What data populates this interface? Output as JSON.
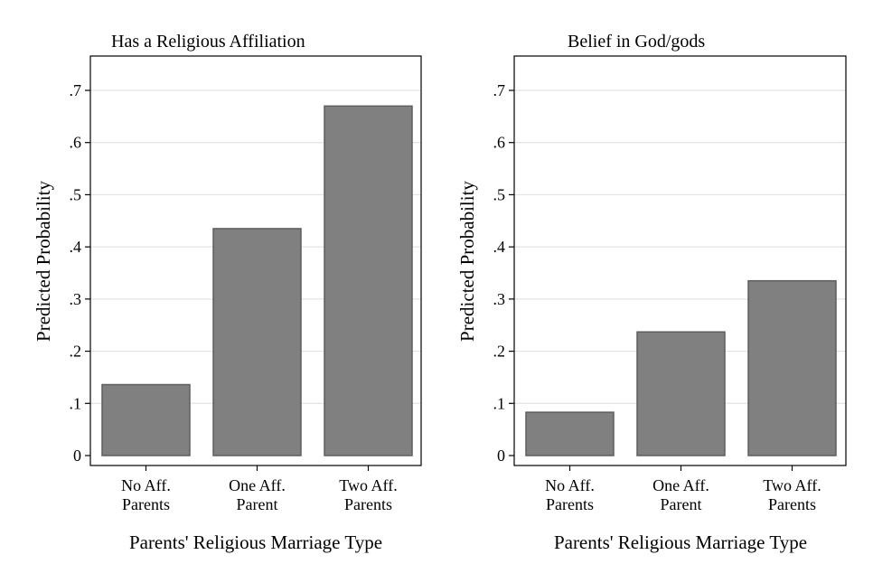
{
  "chart_data": [
    {
      "type": "bar",
      "title": "Has a Religious Affiliation",
      "xlabel": "Parents' Religious Marriage Type",
      "ylabel": "Predicted Probability",
      "categories": [
        [
          "No Aff.",
          "Parents"
        ],
        [
          "One Aff.",
          "Parent"
        ],
        [
          "Two Aff.",
          "Parents"
        ]
      ],
      "values": [
        0.136,
        0.435,
        0.67
      ],
      "ylim": [
        0,
        0.77
      ],
      "yticks": [
        0,
        0.1,
        0.2,
        0.3,
        0.4,
        0.5,
        0.6,
        0.7
      ],
      "ytick_labels": [
        "0",
        ".1",
        ".2",
        ".3",
        ".4",
        ".5",
        ".6",
        ".7"
      ],
      "grid": true,
      "bar_color": "#808080"
    },
    {
      "type": "bar",
      "title": "Belief in God/gods",
      "xlabel": "Parents' Religious Marriage Type",
      "ylabel": "Predicted Probability",
      "categories": [
        [
          "No Aff.",
          "Parents"
        ],
        [
          "One Aff.",
          "Parent"
        ],
        [
          "Two Aff.",
          "Parents"
        ]
      ],
      "values": [
        0.083,
        0.237,
        0.335
      ],
      "ylim": [
        0,
        0.77
      ],
      "yticks": [
        0,
        0.1,
        0.2,
        0.3,
        0.4,
        0.5,
        0.6,
        0.7
      ],
      "ytick_labels": [
        "0",
        ".1",
        ".2",
        ".3",
        ".4",
        ".5",
        ".6",
        ".7"
      ],
      "grid": true,
      "bar_color": "#808080"
    }
  ]
}
